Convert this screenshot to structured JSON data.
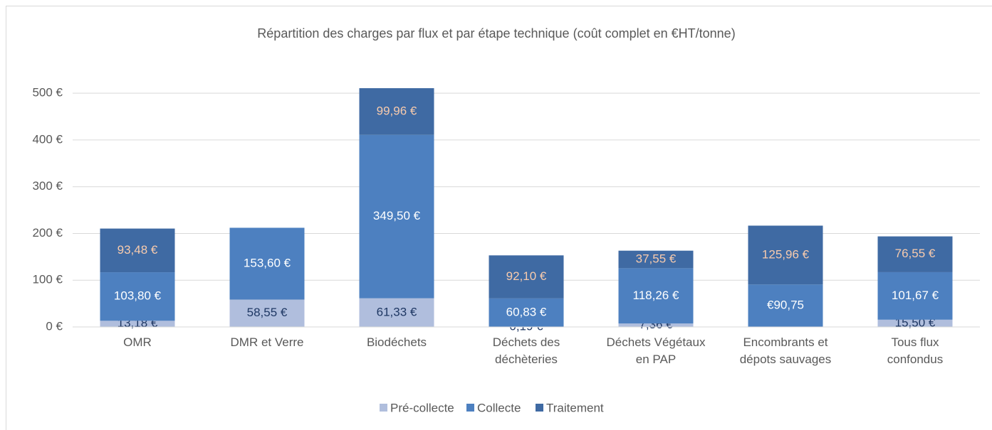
{
  "chart_data": {
    "type": "bar",
    "stacked": true,
    "title": "Répartition des charges par flux et par étape technique (coût complet en €HT/tonne)",
    "categories": [
      "OMR",
      "DMR et Verre",
      "Biodéchets",
      "Déchets des déchèteries",
      "Déchets Végétaux en PAP",
      "Encombrants et dépots sauvages",
      "Tous flux confondus"
    ],
    "series": [
      {
        "name": "Pré-collecte",
        "color": "#b0bedd",
        "values": [
          13.18,
          58.55,
          61.33,
          0.19,
          7.36,
          null,
          15.5
        ],
        "value_labels": [
          "13,18 €",
          "58,55 €",
          "61,33 €",
          "0,19 €",
          "7,36 €",
          null,
          "15,50 €"
        ]
      },
      {
        "name": "Collecte",
        "color": "#4d80c0",
        "values": [
          103.8,
          153.6,
          349.5,
          60.83,
          118.26,
          90.75,
          101.67
        ],
        "value_labels": [
          "103,80 €",
          "153,60 €",
          "349,50 €",
          "60,83 €",
          "118,26 €",
          "€90,75",
          "101,67 €"
        ]
      },
      {
        "name": "Traitement",
        "color": "#3f6aa3",
        "values": [
          93.48,
          null,
          99.96,
          92.1,
          37.55,
          125.96,
          76.55
        ],
        "value_labels": [
          "93,48 €",
          null,
          "99,96 €",
          "92,10 €",
          "37,55 €",
          "125,96 €",
          "76,55 €"
        ]
      }
    ],
    "ylim": [
      0,
      520
    ],
    "yticks": [
      {
        "value": 0,
        "label": "0 €"
      },
      {
        "value": 100,
        "label": "100 €"
      },
      {
        "value": 200,
        "label": "200 €"
      },
      {
        "value": 300,
        "label": "300 €"
      },
      {
        "value": 400,
        "label": "400 €"
      },
      {
        "value": 500,
        "label": "500 €"
      }
    ],
    "grid": true,
    "legend": "bottom"
  }
}
